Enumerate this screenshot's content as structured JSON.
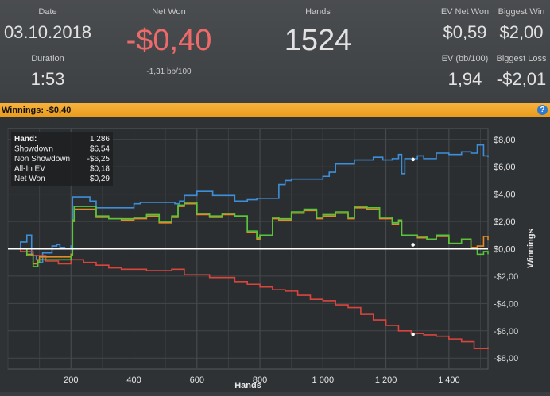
{
  "stats": {
    "date_label": "Date",
    "date_value": "03.10.2018",
    "duration_label": "Duration",
    "duration_value": "1:53",
    "netwon_label": "Net Won",
    "netwon_value": "-$0,40",
    "netwon_sub": "-1,31 bb/100",
    "hands_label": "Hands",
    "hands_value": "1524",
    "evnetwon_label": "EV Net Won",
    "evnetwon_value": "$0,59",
    "biggestwin_label": "Biggest Win",
    "biggestwin_value": "$2,00",
    "evbb_label": "EV (bb/100)",
    "evbb_value": "1,94",
    "biggestloss_label": "Biggest Loss",
    "biggestloss_value": "-$2,01"
  },
  "bar": {
    "title": "Winnings: ",
    "value": "-$0,40",
    "help_icon": "?"
  },
  "tooltip": {
    "rows": [
      {
        "label": "Hand:",
        "value": "1 286"
      },
      {
        "label": "Showdown",
        "value": "$6,54"
      },
      {
        "label": "Non Showdown",
        "value": "-$6,25"
      },
      {
        "label": "All-In EV",
        "value": "$0,18"
      },
      {
        "label": "Net Won",
        "value": "$0,29"
      }
    ]
  },
  "colors": {
    "showdown": "#3d8fd9",
    "non_showdown": "#d9453d",
    "allin_ev": "#e08a2a",
    "net_won": "#52c83a",
    "zero_line": "#ffffff",
    "negative": "#ee6a6a"
  },
  "chart_data": {
    "type": "line",
    "xlabel": "Hands",
    "ylabel": "Winnings",
    "xlim": [
      0,
      1524
    ],
    "ylim": [
      -8.8,
      8.8
    ],
    "x_ticks": [
      200,
      400,
      600,
      800,
      1000,
      1200,
      1400
    ],
    "x_tick_labels": [
      "200",
      "400",
      "600",
      "800",
      "1 000",
      "1 200",
      "1 400"
    ],
    "y_ticks": [
      8,
      6,
      4,
      2,
      0,
      -2,
      -4,
      -6,
      -8
    ],
    "y_tick_labels": [
      "$8,00",
      "$6,00",
      "$4,00",
      "$2,00",
      "$0,00",
      "-$2,00",
      "-$4,00",
      "-$6,00",
      "-$8,00"
    ],
    "series": [
      {
        "key": "showdown",
        "x": [
          0,
          40,
          60,
          75,
          90,
          100,
          110,
          140,
          155,
          165,
          180,
          200,
          205,
          260,
          280,
          400,
          420,
          530,
          545,
          560,
          600,
          650,
          680,
          720,
          760,
          790,
          860,
          880,
          900,
          1000,
          1020,
          1040,
          1060,
          1100,
          1130,
          1160,
          1190,
          1220,
          1240,
          1250,
          1260,
          1300,
          1320,
          1360,
          1400,
          1440,
          1470,
          1490,
          1510,
          1524
        ],
        "y": [
          0,
          0.5,
          1,
          -0.5,
          -0.8,
          -1,
          -0.3,
          0.2,
          0.3,
          0.1,
          0,
          0.2,
          3.8,
          3.5,
          3.0,
          3.3,
          3.4,
          3.3,
          3.5,
          3.9,
          4.2,
          3.9,
          3.9,
          3.5,
          3.6,
          3.7,
          4.7,
          5.0,
          5.1,
          5.3,
          5.6,
          6.2,
          6.2,
          6.5,
          6.5,
          6.7,
          6.5,
          6.6,
          6.9,
          5.5,
          6.6,
          6.8,
          6.6,
          7.0,
          6.9,
          7.1,
          7.0,
          7.6,
          6.8,
          6.7
        ]
      },
      {
        "key": "non_showdown",
        "x": [
          0,
          40,
          80,
          120,
          160,
          200,
          240,
          280,
          320,
          360,
          400,
          440,
          480,
          520,
          560,
          600,
          640,
          680,
          720,
          760,
          800,
          840,
          880,
          920,
          960,
          1000,
          1040,
          1080,
          1120,
          1160,
          1200,
          1240,
          1280,
          1320,
          1360,
          1400,
          1440,
          1480,
          1524
        ],
        "y": [
          0,
          -0.2,
          -0.5,
          -0.9,
          -1.1,
          -0.8,
          -1.0,
          -1.2,
          -1.4,
          -1.5,
          -1.5,
          -1.6,
          -1.6,
          -1.5,
          -1.9,
          -1.9,
          -2.1,
          -2.1,
          -2.4,
          -2.6,
          -2.8,
          -3.0,
          -3.1,
          -3.4,
          -3.7,
          -3.8,
          -4.1,
          -4.3,
          -4.8,
          -5.2,
          -5.6,
          -6.0,
          -6.2,
          -6.3,
          -6.4,
          -6.6,
          -6.8,
          -7.3,
          -7.2
        ]
      },
      {
        "key": "allin_ev",
        "x": [
          0,
          40,
          60,
          80,
          95,
          100,
          200,
          205,
          210,
          280,
          320,
          360,
          400,
          440,
          480,
          520,
          540,
          560,
          600,
          640,
          680,
          720,
          760,
          790,
          800,
          840,
          860,
          900,
          940,
          980,
          1000,
          1040,
          1080,
          1100,
          1140,
          1180,
          1220,
          1240,
          1250,
          1300,
          1330,
          1360,
          1400,
          1440,
          1470,
          1490,
          1510,
          1524
        ],
        "y": [
          0,
          0,
          -0.4,
          -1.1,
          -0.8,
          -0.6,
          -0.4,
          2.0,
          2.9,
          2.3,
          2.2,
          2.1,
          2.2,
          2.4,
          1.9,
          2.3,
          3.1,
          3.3,
          2.5,
          2.3,
          2.5,
          2.4,
          1.2,
          0.7,
          1.0,
          2.2,
          2.1,
          2.6,
          2.8,
          2.2,
          2.4,
          2.6,
          2.2,
          3.0,
          2.9,
          2.2,
          1.8,
          2.0,
          1.0,
          0.8,
          0.7,
          0.9,
          0.4,
          0.7,
          0.1,
          0.2,
          0.9,
          0.6
        ]
      },
      {
        "key": "net_won",
        "x": [
          0,
          40,
          60,
          80,
          95,
          100,
          200,
          205,
          210,
          280,
          320,
          360,
          400,
          440,
          480,
          520,
          540,
          560,
          600,
          640,
          680,
          720,
          760,
          790,
          800,
          840,
          860,
          900,
          940,
          980,
          1000,
          1040,
          1080,
          1100,
          1140,
          1180,
          1220,
          1240,
          1250,
          1300,
          1330,
          1360,
          1400,
          1440,
          1470,
          1490,
          1510,
          1524
        ],
        "y": [
          0,
          0,
          -0.5,
          -1.3,
          -1.0,
          -0.8,
          -0.5,
          2.1,
          3.1,
          2.4,
          2.2,
          2.2,
          2.3,
          2.5,
          2.0,
          2.4,
          3.2,
          3.4,
          2.6,
          2.4,
          2.6,
          2.4,
          1.3,
          0.8,
          1.0,
          2.3,
          2.2,
          2.7,
          2.9,
          2.3,
          2.5,
          2.7,
          2.3,
          3.1,
          3.0,
          2.3,
          1.9,
          2.1,
          1.0,
          0.9,
          0.7,
          1.0,
          0.4,
          0.7,
          0.0,
          -0.4,
          -0.2,
          -0.4
        ]
      }
    ],
    "markers": [
      {
        "key": "showdown",
        "x": 1286,
        "y": 6.54
      },
      {
        "key": "non_showdown",
        "x": 1286,
        "y": -6.25
      },
      {
        "key": "net_won",
        "x": 1286,
        "y": 0.29
      }
    ]
  }
}
